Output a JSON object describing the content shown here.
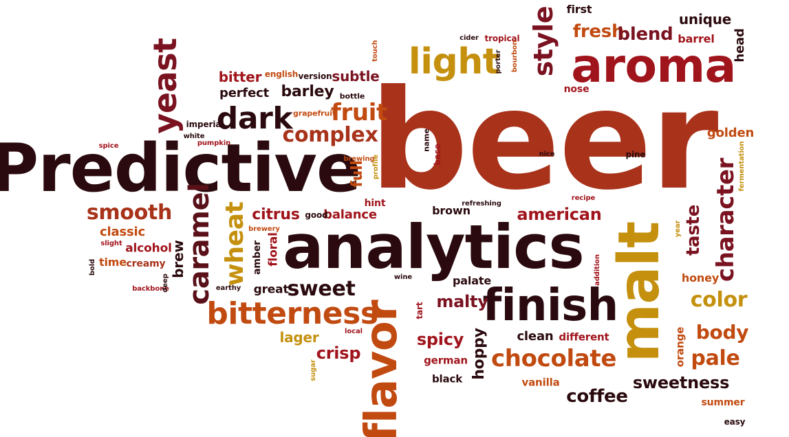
{
  "words": [
    {
      "text": "beer",
      "color": "#a8321a"
    },
    {
      "text": "Predictive",
      "color": "#2a0a0e"
    },
    {
      "text": "analytics",
      "color": "#2a0a0e"
    },
    {
      "text": "aroma",
      "color": "#a0141c"
    },
    {
      "text": "malt",
      "color": "#c4900e"
    },
    {
      "text": "flavor",
      "color": "#c14a10"
    },
    {
      "text": "finish",
      "color": "#2a0a0e"
    },
    {
      "text": "light",
      "color": "#c4900e"
    },
    {
      "text": "style",
      "color": "#7a1220"
    },
    {
      "text": "yeast",
      "color": "#7a1220"
    },
    {
      "text": "dark",
      "color": "#2a0a0e"
    },
    {
      "text": "bitterness",
      "color": "#c14a10"
    },
    {
      "text": "character",
      "color": "#7a1220"
    },
    {
      "text": "chocolate",
      "color": "#c14a10"
    },
    {
      "text": "caramel",
      "color": "#5a1018"
    },
    {
      "text": "wheat",
      "color": "#c4900e"
    },
    {
      "text": "fruit",
      "color": "#c14a10"
    },
    {
      "text": "complex",
      "color": "#a8321a"
    },
    {
      "text": "smooth",
      "color": "#a8321a"
    },
    {
      "text": "sweet",
      "color": "#2a0a0e"
    },
    {
      "text": "color",
      "color": "#c4900e"
    },
    {
      "text": "body",
      "color": "#c14a10"
    },
    {
      "text": "pale",
      "color": "#c14a10"
    },
    {
      "text": "coffee",
      "color": "#2a0a0e"
    },
    {
      "text": "sweetness",
      "color": "#2a0a0e"
    },
    {
      "text": "fresh",
      "color": "#c14a10"
    },
    {
      "text": "blend",
      "color": "#7a1220"
    },
    {
      "text": "taste",
      "color": "#7a1220"
    },
    {
      "text": "american",
      "color": "#a0141c"
    },
    {
      "text": "malty",
      "color": "#7a1220"
    },
    {
      "text": "spicy",
      "color": "#a0141c"
    },
    {
      "text": "crisp",
      "color": "#a0141c"
    },
    {
      "text": "hoppy",
      "color": "#2a0a0e"
    },
    {
      "text": "full",
      "color": "#c14a10"
    },
    {
      "text": "citrus",
      "color": "#a0141c"
    },
    {
      "text": "barley",
      "color": "#2a0a0e"
    },
    {
      "text": "bitter",
      "color": "#a0141c"
    },
    {
      "text": "subtle",
      "color": "#7a1220"
    },
    {
      "text": "unique",
      "color": "#2a0a0e"
    },
    {
      "text": "first",
      "color": "#2a0a0e"
    },
    {
      "text": "head",
      "color": "#2a0a0e"
    },
    {
      "text": "barrel",
      "color": "#a0141c"
    },
    {
      "text": "golden",
      "color": "#c14a10"
    },
    {
      "text": "brew",
      "color": "#2a0a0e"
    },
    {
      "text": "classic",
      "color": "#c14a10"
    },
    {
      "text": "balance",
      "color": "#a0141c"
    },
    {
      "text": "lager",
      "color": "#c4900e"
    },
    {
      "text": "clean",
      "color": "#2a0a0e"
    },
    {
      "text": "honey",
      "color": "#c14a10"
    },
    {
      "text": "perfect",
      "color": "#2a0a0e"
    },
    {
      "text": "great",
      "color": "#2a0a0e"
    },
    {
      "text": "alcohol",
      "color": "#a0141c"
    },
    {
      "text": "floral",
      "color": "#a0141c"
    },
    {
      "text": "time",
      "color": "#c14a10"
    },
    {
      "text": "creamy",
      "color": "#a8321a"
    },
    {
      "text": "amber",
      "color": "#2a0a0e"
    },
    {
      "text": "palate",
      "color": "#2a0a0e"
    },
    {
      "text": "brown",
      "color": "#2a0a0e"
    },
    {
      "text": "nose",
      "color": "#a0141c"
    },
    {
      "text": "different",
      "color": "#a0141c"
    },
    {
      "text": "vanilla",
      "color": "#c14a10"
    },
    {
      "text": "black",
      "color": "#2a0a0e"
    },
    {
      "text": "german",
      "color": "#a0141c"
    },
    {
      "text": "orange",
      "color": "#c14a10"
    },
    {
      "text": "summer",
      "color": "#c14a10"
    },
    {
      "text": "hint",
      "color": "#a0141c"
    },
    {
      "text": "good",
      "color": "#2a0a0e"
    },
    {
      "text": "english",
      "color": "#c14a10"
    },
    {
      "text": "version",
      "color": "#2a0a0e"
    },
    {
      "text": "bottle",
      "color": "#2a0a0e"
    },
    {
      "text": "imperial",
      "color": "#2a0a0e"
    },
    {
      "text": "grapefruit",
      "color": "#c14a10"
    },
    {
      "text": "white",
      "color": "#2a0a0e"
    },
    {
      "text": "spice",
      "color": "#a0141c"
    },
    {
      "text": "pumpkin",
      "color": "#a0141c"
    },
    {
      "text": "brewing",
      "color": "#c14a10"
    },
    {
      "text": "profile",
      "color": "#c4900e"
    },
    {
      "text": "name",
      "color": "#2a0a0e"
    },
    {
      "text": "base",
      "color": "#a0141c"
    },
    {
      "text": "nice",
      "color": "#2a0a0e"
    },
    {
      "text": "pine",
      "color": "#2a0a0e"
    },
    {
      "text": "fermentation",
      "color": "#c4900e"
    },
    {
      "text": "recipe",
      "color": "#a0141c"
    },
    {
      "text": "year",
      "color": "#c4900e"
    },
    {
      "text": "refreshing",
      "color": "#2a0a0e"
    },
    {
      "text": "brewery",
      "color": "#c14a10"
    },
    {
      "text": "slight",
      "color": "#a0141c"
    },
    {
      "text": "bold",
      "color": "#2a0a0e"
    },
    {
      "text": "backbone",
      "color": "#a0141c"
    },
    {
      "text": "deep",
      "color": "#2a0a0e"
    },
    {
      "text": "earthy",
      "color": "#2a0a0e"
    },
    {
      "text": "wine",
      "color": "#2a0a0e"
    },
    {
      "text": "addition",
      "color": "#a0141c"
    },
    {
      "text": "tart",
      "color": "#a0141c"
    },
    {
      "text": "local",
      "color": "#a0141c"
    },
    {
      "text": "sugar",
      "color": "#c4900e"
    },
    {
      "text": "easy",
      "color": "#2a0a0e"
    },
    {
      "text": "cider",
      "color": "#2a0a0e"
    },
    {
      "text": "tropical",
      "color": "#a0141c"
    },
    {
      "text": "porter",
      "color": "#2a0a0e"
    },
    {
      "text": "bourbon",
      "color": "#c14a10"
    },
    {
      "text": "touch",
      "color": "#c14a10"
    }
  ]
}
